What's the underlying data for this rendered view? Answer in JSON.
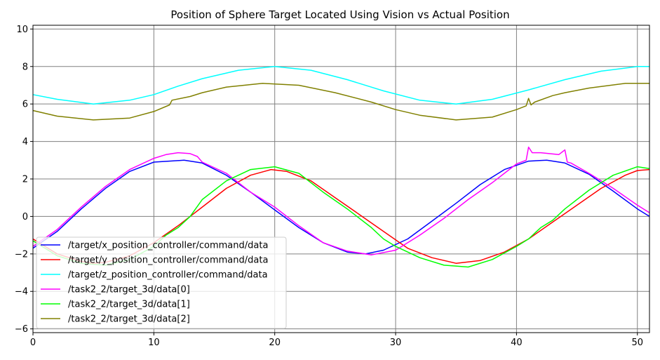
{
  "chart_data": {
    "type": "line",
    "title": "Position of Sphere Target Located Using Vision vs Actual Position",
    "xlabel": "",
    "ylabel": "",
    "xlim": [
      0,
      51
    ],
    "ylim": [
      -6.2,
      10.2
    ],
    "xticks": [
      0,
      10,
      20,
      30,
      40,
      50
    ],
    "yticks": [
      -6,
      -4,
      -2,
      0,
      2,
      4,
      6,
      8,
      10
    ],
    "grid": true,
    "legend_position": "lower-left",
    "series": [
      {
        "name": "/target/x_position_controller/command/data",
        "color": "#0000ff",
        "x": [
          0,
          2,
          4,
          6,
          8,
          10,
          12.5,
          14,
          16,
          18,
          20,
          22,
          24,
          26,
          27.5,
          29,
          31,
          33,
          35,
          37,
          39,
          41,
          42.5,
          44,
          46,
          48,
          50,
          51
        ],
        "y": [
          -1.7,
          -0.8,
          0.4,
          1.5,
          2.4,
          2.9,
          3.0,
          2.85,
          2.2,
          1.3,
          0.35,
          -0.6,
          -1.4,
          -1.9,
          -2.0,
          -1.8,
          -1.2,
          -0.25,
          0.7,
          1.7,
          2.5,
          2.95,
          3.0,
          2.85,
          2.25,
          1.35,
          0.4,
          0.0
        ]
      },
      {
        "name": "/target/y_position_controller/command/data",
        "color": "#ff0000",
        "x": [
          0,
          2,
          4,
          5,
          6,
          8,
          10,
          12,
          14,
          16,
          18,
          19.7,
          21,
          23,
          25,
          27,
          29,
          31,
          33,
          35,
          37,
          39,
          41,
          43,
          45,
          47,
          49,
          50,
          51
        ],
        "y": [
          -1.2,
          -2.0,
          -2.4,
          -2.5,
          -2.45,
          -2.1,
          -1.4,
          -0.5,
          0.5,
          1.5,
          2.2,
          2.5,
          2.4,
          1.9,
          1.0,
          0.1,
          -0.8,
          -1.7,
          -2.2,
          -2.5,
          -2.35,
          -1.9,
          -1.2,
          -0.3,
          0.6,
          1.5,
          2.2,
          2.45,
          2.5
        ]
      },
      {
        "name": "/target/z_position_controller/command/data",
        "color": "#00ffff",
        "x": [
          0,
          2,
          5,
          8,
          10,
          12,
          14,
          17,
          20,
          23,
          26,
          29,
          32,
          35,
          38,
          41,
          44,
          47,
          50,
          51
        ],
        "y": [
          6.5,
          6.25,
          6.0,
          6.2,
          6.5,
          6.95,
          7.35,
          7.8,
          8.0,
          7.8,
          7.3,
          6.7,
          6.2,
          6.0,
          6.25,
          6.75,
          7.3,
          7.75,
          8.0,
          8.0
        ]
      },
      {
        "name": "/task2_2/target_3d/data[0]",
        "color": "#ff00ff",
        "x": [
          0,
          2,
          4,
          6,
          8,
          10,
          11,
          12,
          13,
          13.6,
          14,
          16,
          18,
          20,
          22,
          24,
          26,
          28,
          30,
          32,
          34,
          36,
          38,
          40,
          40.8,
          41,
          41.3,
          42,
          43.5,
          44,
          44.2,
          44.5,
          46,
          48,
          50,
          51
        ],
        "y": [
          -1.6,
          -0.7,
          0.5,
          1.6,
          2.5,
          3.1,
          3.3,
          3.4,
          3.35,
          3.2,
          2.9,
          2.3,
          1.3,
          0.5,
          -0.5,
          -1.4,
          -1.85,
          -2.05,
          -1.8,
          -1.0,
          -0.1,
          0.9,
          1.8,
          2.8,
          3.0,
          3.7,
          3.4,
          3.4,
          3.3,
          3.55,
          2.9,
          2.85,
          2.3,
          1.5,
          0.6,
          0.2
        ]
      },
      {
        "name": "/task2_2/target_3d/data[1]",
        "color": "#00ff00",
        "x": [
          0,
          2,
          4,
          6,
          8,
          10,
          11,
          12,
          13,
          14,
          16,
          18,
          20,
          22,
          24,
          26,
          28,
          29,
          30,
          32,
          34,
          36,
          38,
          40,
          41,
          42,
          43,
          44,
          46,
          48,
          50,
          51
        ],
        "y": [
          -1.3,
          -2.1,
          -2.5,
          -2.6,
          -2.3,
          -1.6,
          -1.0,
          -0.6,
          0.0,
          0.9,
          1.9,
          2.5,
          2.65,
          2.3,
          1.3,
          0.4,
          -0.6,
          -1.2,
          -1.6,
          -2.2,
          -2.6,
          -2.7,
          -2.3,
          -1.6,
          -1.2,
          -0.6,
          -0.2,
          0.4,
          1.4,
          2.2,
          2.65,
          2.55
        ]
      },
      {
        "name": "/task2_2/target_3d/data[2]",
        "color": "#808000",
        "x": [
          0,
          2,
          5,
          8,
          10,
          11.3,
          11.5,
          13,
          14,
          16,
          19,
          22,
          25,
          28,
          30,
          32,
          35,
          38,
          40,
          40.8,
          41,
          41.2,
          41.5,
          43,
          44,
          46,
          49,
          51
        ],
        "y": [
          5.65,
          5.35,
          5.15,
          5.25,
          5.6,
          5.95,
          6.2,
          6.4,
          6.6,
          6.9,
          7.1,
          7.0,
          6.6,
          6.1,
          5.7,
          5.4,
          5.15,
          5.3,
          5.7,
          5.9,
          6.3,
          5.95,
          6.1,
          6.45,
          6.6,
          6.85,
          7.1,
          7.1
        ]
      }
    ]
  }
}
